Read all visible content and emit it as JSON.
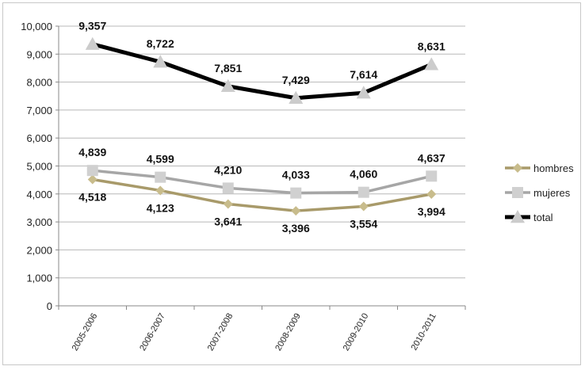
{
  "chart_data": {
    "type": "line",
    "title": "",
    "xlabel": "",
    "ylabel": "",
    "categories": [
      "2005-2006",
      "2006-2007",
      "2007-2008",
      "2008-2009",
      "2009-2010",
      "2010-2011"
    ],
    "ylim": [
      0,
      10000
    ],
    "yticks": [
      0,
      1000,
      2000,
      3000,
      4000,
      5000,
      6000,
      7000,
      8000,
      9000,
      10000
    ],
    "ytick_labels": [
      "0",
      "1,000",
      "2,000",
      "3,000",
      "4,000",
      "5,000",
      "6,000",
      "7,000",
      "8,000",
      "9,000",
      "10,000"
    ],
    "grid": true,
    "legend_position": "right",
    "series": [
      {
        "name": "hombres",
        "values": [
          4518,
          4123,
          3641,
          3396,
          3554,
          3994
        ],
        "labels": [
          "4,518",
          "4,123",
          "3,641",
          "3,396",
          "3,554",
          "3,994"
        ],
        "color": "#a89a6a",
        "marker_color": "#c8bc8c",
        "marker": "diamond"
      },
      {
        "name": "mujeres",
        "values": [
          4839,
          4599,
          4210,
          4033,
          4060,
          4637
        ],
        "labels": [
          "4,839",
          "4,599",
          "4,210",
          "4,033",
          "4,060",
          "4,637"
        ],
        "color": "#a6a6a6",
        "marker_color": "#d0d0d0",
        "marker": "square"
      },
      {
        "name": "total",
        "values": [
          9357,
          8722,
          7851,
          7429,
          7614,
          8631
        ],
        "labels": [
          "9,357",
          "8,722",
          "7,851",
          "7,429",
          "7,614",
          "8,631"
        ],
        "color": "#000000",
        "marker_color": "#cccccc",
        "marker": "triangle"
      }
    ]
  }
}
